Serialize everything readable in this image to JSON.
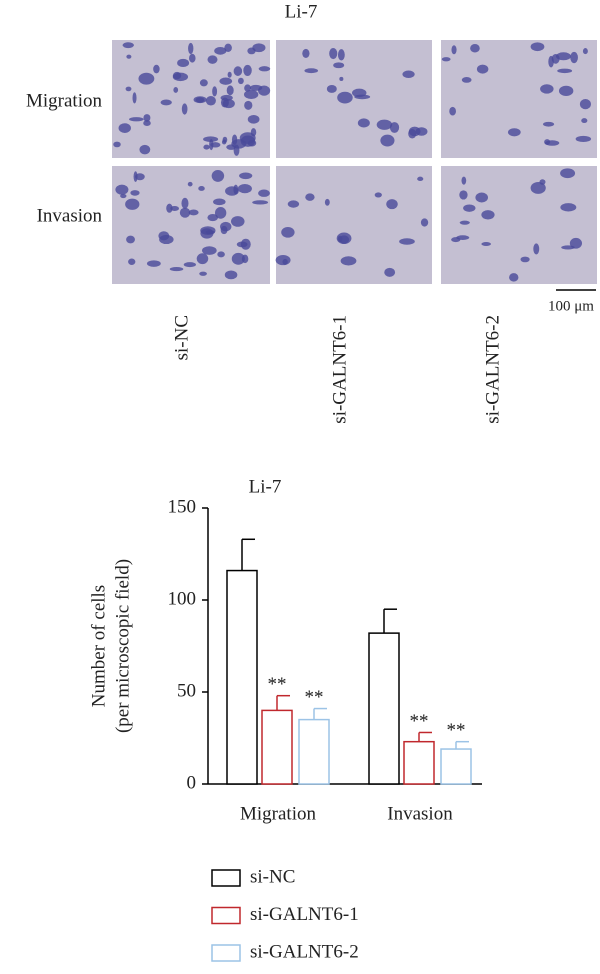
{
  "panel_a": {
    "title": "Li-7",
    "rows": [
      "Migration",
      "Invasion"
    ],
    "columns": [
      "si-NC",
      "si-GALNT6-1",
      "si-GALNT6-2"
    ],
    "scale_bar": "100 μm"
  },
  "chart_data": {
    "type": "bar",
    "title": "Li-7",
    "ylabel": [
      "Number of cells",
      "(per microscopic field)"
    ],
    "categories": [
      "Migration",
      "Invasion"
    ],
    "series": [
      {
        "name": "si-NC",
        "color": "#000000",
        "values": [
          116,
          82
        ],
        "errors": [
          17,
          13
        ]
      },
      {
        "name": "si-GALNT6-1",
        "color": "#c0282d",
        "values": [
          40,
          23
        ],
        "errors": [
          8,
          5
        ],
        "significance": [
          "**",
          "**"
        ]
      },
      {
        "name": "si-GALNT6-2",
        "color": "#9cc3e6",
        "values": [
          35,
          19
        ],
        "errors": [
          6,
          4
        ],
        "significance": [
          "**",
          "**"
        ]
      }
    ],
    "ylim": [
      0,
      150
    ],
    "yticks": [
      0,
      50,
      100,
      150
    ]
  }
}
